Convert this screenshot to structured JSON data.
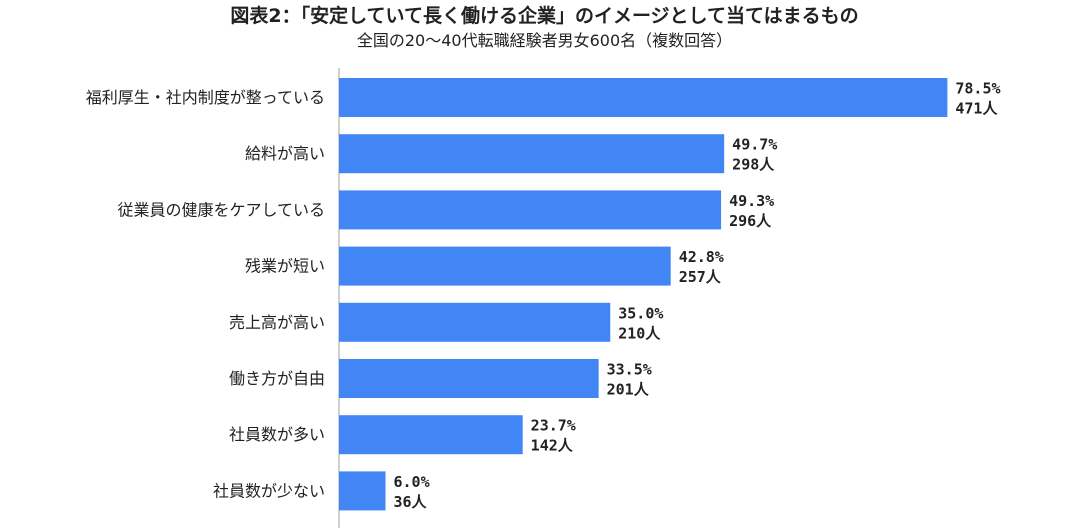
{
  "chart_data": {
    "type": "bar",
    "orientation": "horizontal",
    "title": "図表2：「安定していて長く働ける企業」のイメージとして当てはまるもの",
    "subtitle": "全国の20～40代転職経験者男女600名（複数回答）",
    "categories": [
      "福利厚生・社内制度が整っている",
      "給料が高い",
      "従業員の健康をケアしている",
      "残業が短い",
      "売上高が高い",
      "働き方が自由",
      "社員数が多い",
      "社員数が少ない"
    ],
    "values": [
      78.5,
      49.7,
      49.3,
      42.8,
      35.0,
      33.5,
      23.7,
      6.0
    ],
    "percent_labels": [
      "78.5%",
      "49.7%",
      "49.3%",
      "42.8%",
      "35.0%",
      "33.5%",
      "23.7%",
      "6.0%"
    ],
    "count_labels": [
      "471人",
      "298人",
      "296人",
      "257人",
      "210人",
      "201人",
      "142人",
      "36人"
    ],
    "xlim": [
      0,
      100
    ],
    "grid": false,
    "legend": "none",
    "colors": {
      "bar": "#4285F4",
      "axis": "#BFBFBF",
      "text": "#222222"
    }
  }
}
